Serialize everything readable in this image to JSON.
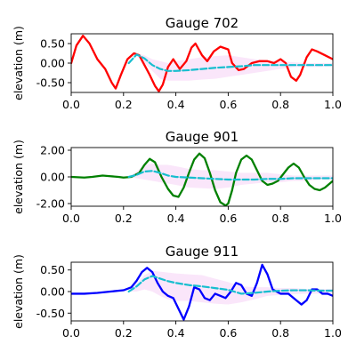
{
  "colors": {
    "band": "#f0b8f0",
    "band_opacity": 0.35,
    "mean": "#17becf"
  },
  "chart_data": [
    {
      "type": "line",
      "title": "Gauge 702",
      "xlabel": "",
      "ylabel": "elevation (m)",
      "xlim": [
        0.0,
        1.0
      ],
      "ylim": [
        -0.75,
        0.75
      ],
      "xticks": [
        "0.0",
        "0.2",
        "0.4",
        "0.6",
        "0.8",
        "1.0"
      ],
      "yticks": [
        "0.50",
        "0.00",
        "-0.50"
      ],
      "ytick_values": [
        0.5,
        0.0,
        -0.5
      ],
      "series": [
        {
          "role": "observed",
          "color": "#ff0000",
          "style": "solid",
          "x": [
            0.0,
            0.02,
            0.045,
            0.07,
            0.1,
            0.13,
            0.155,
            0.17,
            0.19,
            0.215,
            0.24,
            0.26,
            0.28,
            0.3,
            0.32,
            0.335,
            0.35,
            0.37,
            0.39,
            0.415,
            0.44,
            0.46,
            0.475,
            0.5,
            0.52,
            0.545,
            0.57,
            0.6,
            0.615,
            0.64,
            0.66,
            0.69,
            0.72,
            0.75,
            0.775,
            0.8,
            0.82,
            0.84,
            0.86,
            0.875,
            0.9,
            0.92,
            0.94,
            0.97,
            1.0
          ],
          "y": [
            0.0,
            0.45,
            0.7,
            0.5,
            0.1,
            -0.15,
            -0.5,
            -0.65,
            -0.3,
            0.1,
            0.25,
            0.2,
            -0.05,
            -0.3,
            -0.58,
            -0.72,
            -0.55,
            -0.1,
            0.1,
            -0.15,
            0.05,
            0.4,
            0.5,
            0.2,
            0.05,
            0.3,
            0.42,
            0.35,
            0.0,
            -0.18,
            -0.15,
            0.0,
            0.05,
            0.05,
            0.0,
            0.1,
            0.0,
            -0.35,
            -0.45,
            -0.3,
            0.15,
            0.35,
            0.3,
            0.2,
            0.1
          ]
        },
        {
          "role": "mean",
          "color": "#17becf",
          "style": "dashed",
          "x": [
            0.22,
            0.25,
            0.28,
            0.31,
            0.34,
            0.37,
            0.4,
            0.45,
            0.5,
            0.55,
            0.6,
            0.65,
            0.7,
            0.75,
            0.8,
            0.85,
            0.9,
            0.95,
            1.0
          ],
          "y": [
            0.0,
            0.22,
            0.12,
            -0.05,
            -0.15,
            -0.2,
            -0.2,
            -0.18,
            -0.15,
            -0.12,
            -0.1,
            -0.08,
            -0.05,
            -0.05,
            -0.05,
            -0.05,
            -0.05,
            -0.05,
            -0.05
          ]
        }
      ],
      "band": {
        "x": [
          0.22,
          0.25,
          0.28,
          0.31,
          0.34,
          0.37,
          0.4,
          0.45,
          0.5,
          0.55,
          0.6,
          0.65,
          0.7,
          0.75,
          0.8,
          0.85,
          0.9,
          0.95,
          1.0
        ],
        "upper": [
          0.0,
          0.25,
          0.2,
          0.1,
          0.05,
          0.0,
          0.05,
          0.1,
          0.15,
          0.18,
          0.2,
          0.15,
          0.1,
          0.08,
          0.05,
          0.02,
          0.0,
          0.0,
          0.0
        ],
        "lower": [
          0.0,
          0.18,
          0.0,
          -0.2,
          -0.4,
          -0.45,
          -0.45,
          -0.45,
          -0.42,
          -0.4,
          -0.35,
          -0.3,
          -0.25,
          -0.2,
          -0.15,
          -0.1,
          -0.1,
          -0.1,
          -0.08
        ]
      }
    },
    {
      "type": "line",
      "title": "Gauge 901",
      "xlabel": "",
      "ylabel": "elevation (m)",
      "xlim": [
        0.0,
        1.0
      ],
      "ylim": [
        -2.2,
        2.2
      ],
      "xticks": [
        "0.0",
        "0.2",
        "0.4",
        "0.6",
        "0.8",
        "1.0"
      ],
      "yticks": [
        "2.00",
        "0.00",
        "-2.00"
      ],
      "ytick_values": [
        2.0,
        0.0,
        -2.0
      ],
      "series": [
        {
          "role": "observed",
          "color": "#008000",
          "style": "solid",
          "x": [
            0.0,
            0.05,
            0.08,
            0.12,
            0.15,
            0.18,
            0.2,
            0.23,
            0.26,
            0.28,
            0.3,
            0.32,
            0.345,
            0.37,
            0.39,
            0.41,
            0.43,
            0.45,
            0.47,
            0.49,
            0.51,
            0.53,
            0.55,
            0.57,
            0.59,
            0.6,
            0.615,
            0.63,
            0.65,
            0.67,
            0.69,
            0.71,
            0.73,
            0.75,
            0.77,
            0.79,
            0.81,
            0.83,
            0.85,
            0.87,
            0.89,
            0.91,
            0.93,
            0.95,
            0.97,
            1.0
          ],
          "y": [
            0.0,
            -0.05,
            0.0,
            0.1,
            0.05,
            0.0,
            -0.05,
            0.0,
            0.3,
            0.9,
            1.35,
            1.1,
            0.0,
            -0.9,
            -1.4,
            -1.5,
            -0.8,
            0.3,
            1.3,
            1.75,
            1.4,
            0.3,
            -1.0,
            -1.9,
            -2.15,
            -2.0,
            -1.0,
            0.3,
            1.3,
            1.6,
            1.3,
            0.5,
            -0.3,
            -0.6,
            -0.5,
            -0.3,
            0.2,
            0.7,
            1.0,
            0.7,
            0.0,
            -0.6,
            -0.9,
            -1.0,
            -0.8,
            -0.3
          ]
        },
        {
          "role": "mean",
          "color": "#17becf",
          "style": "dashed",
          "x": [
            0.22,
            0.25,
            0.28,
            0.31,
            0.34,
            0.37,
            0.4,
            0.45,
            0.5,
            0.55,
            0.6,
            0.65,
            0.7,
            0.75,
            0.8,
            0.85,
            0.9,
            0.95,
            1.0
          ],
          "y": [
            0.0,
            0.15,
            0.4,
            0.45,
            0.3,
            0.1,
            0.0,
            -0.05,
            -0.1,
            -0.15,
            -0.2,
            -0.2,
            -0.2,
            -0.15,
            -0.15,
            -0.1,
            -0.1,
            -0.1,
            -0.1
          ]
        }
      ],
      "band": {
        "x": [
          0.22,
          0.25,
          0.28,
          0.31,
          0.34,
          0.37,
          0.4,
          0.45,
          0.5,
          0.55,
          0.6,
          0.65,
          0.7,
          0.75,
          0.8,
          0.85,
          0.9,
          0.95,
          1.0
        ],
        "upper": [
          0.0,
          0.4,
          0.9,
          1.0,
          0.9,
          0.9,
          0.8,
          0.6,
          0.5,
          0.5,
          0.4,
          0.3,
          0.3,
          0.3,
          0.2,
          0.1,
          0.1,
          0.1,
          0.1
        ],
        "lower": [
          0.0,
          -0.1,
          -0.2,
          -0.3,
          -0.4,
          -0.5,
          -0.6,
          -0.8,
          -0.85,
          -0.9,
          -0.8,
          -0.6,
          -0.5,
          -0.4,
          -0.4,
          -0.3,
          -0.3,
          -0.2,
          -0.2
        ]
      }
    },
    {
      "type": "line",
      "title": "Gauge 911",
      "xlabel": "",
      "ylabel": "elevation (m)",
      "xlim": [
        0.0,
        1.0
      ],
      "ylim": [
        -0.68,
        0.68
      ],
      "xticks": [
        "0.0",
        "0.2",
        "0.4",
        "0.6",
        "0.8",
        "1.0"
      ],
      "yticks": [
        "0.50",
        "0.00",
        "-0.50"
      ],
      "ytick_values": [
        0.5,
        0.0,
        -0.5
      ],
      "series": [
        {
          "role": "observed",
          "color": "#0000ff",
          "style": "solid",
          "x": [
            0.0,
            0.05,
            0.1,
            0.15,
            0.2,
            0.23,
            0.25,
            0.27,
            0.29,
            0.31,
            0.33,
            0.35,
            0.37,
            0.39,
            0.41,
            0.43,
            0.45,
            0.47,
            0.49,
            0.51,
            0.53,
            0.55,
            0.57,
            0.59,
            0.61,
            0.63,
            0.65,
            0.67,
            0.69,
            0.71,
            0.73,
            0.75,
            0.77,
            0.8,
            0.83,
            0.86,
            0.88,
            0.9,
            0.92,
            0.94,
            0.96,
            0.98,
            1.0
          ],
          "y": [
            -0.05,
            -0.05,
            -0.03,
            0.0,
            0.03,
            0.1,
            0.25,
            0.45,
            0.55,
            0.45,
            0.2,
            0.0,
            -0.1,
            -0.15,
            -0.4,
            -0.65,
            -0.35,
            0.1,
            0.05,
            -0.15,
            -0.2,
            -0.05,
            -0.1,
            -0.15,
            0.0,
            0.2,
            0.15,
            -0.05,
            -0.1,
            0.2,
            0.62,
            0.4,
            0.05,
            -0.05,
            -0.05,
            -0.2,
            -0.3,
            -0.2,
            0.05,
            0.05,
            -0.05,
            -0.05,
            -0.1
          ]
        },
        {
          "role": "mean",
          "color": "#17becf",
          "style": "dashed",
          "x": [
            0.22,
            0.25,
            0.28,
            0.31,
            0.34,
            0.37,
            0.4,
            0.45,
            0.5,
            0.55,
            0.6,
            0.65,
            0.7,
            0.75,
            0.8,
            0.85,
            0.9,
            0.95,
            1.0
          ],
          "y": [
            0.0,
            0.12,
            0.28,
            0.36,
            0.3,
            0.24,
            0.2,
            0.15,
            0.12,
            0.08,
            0.04,
            -0.05,
            -0.03,
            0.0,
            0.02,
            0.03,
            0.03,
            0.02,
            0.02
          ]
        }
      ],
      "band": {
        "x": [
          0.22,
          0.25,
          0.28,
          0.31,
          0.34,
          0.37,
          0.4,
          0.45,
          0.5,
          0.55,
          0.6,
          0.65,
          0.7,
          0.75,
          0.8,
          0.85,
          0.9,
          0.95,
          1.0
        ],
        "upper": [
          0.0,
          0.18,
          0.38,
          0.48,
          0.46,
          0.44,
          0.42,
          0.4,
          0.38,
          0.3,
          0.22,
          0.12,
          0.1,
          0.1,
          0.08,
          0.08,
          0.06,
          0.06,
          0.06
        ],
        "lower": [
          0.0,
          0.0,
          0.05,
          0.0,
          -0.1,
          -0.18,
          -0.22,
          -0.22,
          -0.25,
          -0.28,
          -0.3,
          -0.25,
          -0.18,
          -0.1,
          -0.08,
          -0.06,
          -0.05,
          -0.05,
          -0.05
        ]
      }
    }
  ]
}
